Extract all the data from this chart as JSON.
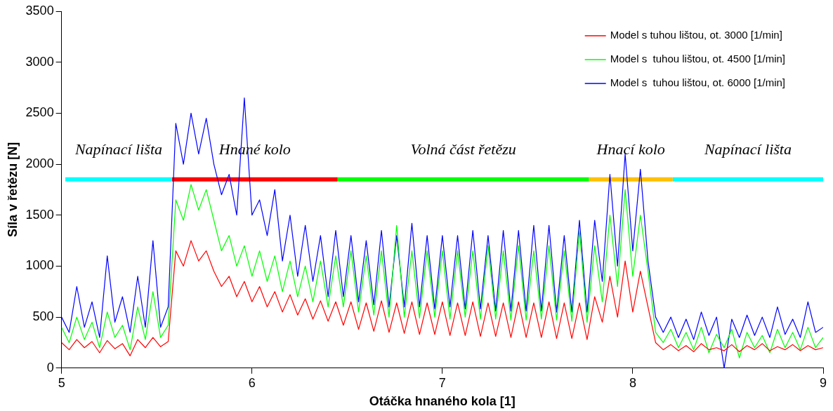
{
  "chart_data": {
    "type": "line",
    "xlabel": "Otáčka hnaného kola [1]",
    "ylabel": "Síla v řetězu [N]",
    "xlim": [
      5,
      9
    ],
    "ylim": [
      0,
      3500
    ],
    "xticks": [
      5,
      6,
      7,
      8,
      9
    ],
    "yticks": [
      0,
      500,
      1000,
      1500,
      2000,
      2500,
      3000,
      3500
    ],
    "grid": false,
    "legend": "top right",
    "marker": "none",
    "line_style": "solid",
    "x": [
      5,
      5.04,
      5.08,
      5.12,
      5.16,
      5.2,
      5.24,
      5.28,
      5.32,
      5.36,
      5.4,
      5.44,
      5.48,
      5.52,
      5.56,
      5.6,
      5.64,
      5.68,
      5.72,
      5.76,
      5.8,
      5.84,
      5.88,
      5.92,
      5.96,
      6,
      6.04,
      6.08,
      6.12,
      6.16,
      6.2,
      6.24,
      6.28,
      6.32,
      6.36,
      6.4,
      6.44,
      6.48,
      6.52,
      6.56,
      6.6,
      6.64,
      6.68,
      6.72,
      6.76,
      6.8,
      6.84,
      6.88,
      6.92,
      6.96,
      7,
      7.04,
      7.08,
      7.12,
      7.16,
      7.2,
      7.24,
      7.28,
      7.32,
      7.36,
      7.4,
      7.44,
      7.48,
      7.52,
      7.56,
      7.6,
      7.64,
      7.68,
      7.72,
      7.76,
      7.8,
      7.84,
      7.88,
      7.92,
      7.96,
      8,
      8.04,
      8.08,
      8.12,
      8.16,
      8.2,
      8.24,
      8.28,
      8.32,
      8.36,
      8.4,
      8.44,
      8.48,
      8.52,
      8.56,
      8.6,
      8.64,
      8.68,
      8.72,
      8.76,
      8.8,
      8.84,
      8.88,
      8.92,
      8.96,
      9
    ],
    "series": [
      {
        "name": "Model s tuhou lištou, ot. 3000 [1/min]",
        "color": "#ff0000",
        "values": [
          250,
          180,
          280,
          200,
          260,
          150,
          270,
          190,
          240,
          120,
          280,
          200,
          300,
          210,
          260,
          1150,
          1000,
          1250,
          1050,
          1150,
          950,
          800,
          900,
          700,
          850,
          650,
          800,
          600,
          750,
          550,
          720,
          520,
          680,
          480,
          660,
          460,
          650,
          420,
          650,
          380,
          640,
          360,
          660,
          350,
          640,
          340,
          650,
          330,
          640,
          330,
          650,
          320,
          640,
          320,
          650,
          310,
          640,
          310,
          640,
          300,
          650,
          300,
          640,
          300,
          650,
          290,
          640,
          290,
          640,
          280,
          700,
          450,
          900,
          500,
          1050,
          550,
          950,
          600,
          250,
          180,
          230,
          170,
          220,
          160,
          240,
          180,
          200,
          170,
          230,
          160,
          220,
          180,
          240,
          170,
          210,
          180,
          230,
          170,
          220,
          180,
          200
        ]
      },
      {
        "name": "Model s  tuhou lištou, ot. 4500 [1/min]",
        "color": "#00ff00",
        "values": [
          400,
          250,
          500,
          280,
          450,
          200,
          550,
          300,
          420,
          180,
          600,
          280,
          750,
          300,
          420,
          1650,
          1450,
          1800,
          1550,
          1750,
          1450,
          1150,
          1300,
          1000,
          1200,
          900,
          1150,
          850,
          1100,
          750,
          1050,
          700,
          1000,
          650,
          1050,
          600,
          1100,
          600,
          1150,
          550,
          1100,
          520,
          1150,
          500,
          1400,
          500,
          1150,
          490,
          1150,
          500,
          1150,
          480,
          1150,
          500,
          1150,
          480,
          1200,
          480,
          1150,
          470,
          1200,
          470,
          1150,
          480,
          1200,
          470,
          1150,
          460,
          1350,
          450,
          1200,
          650,
          1500,
          800,
          1750,
          900,
          1500,
          950,
          350,
          250,
          380,
          200,
          350,
          180,
          400,
          150,
          330,
          200,
          380,
          100,
          350,
          200,
          320,
          150,
          380,
          200,
          350,
          180,
          400,
          200,
          300
        ]
      },
      {
        "name": "Model s  tuhou lištou, ot. 6000 [1/min]",
        "color": "#0000ff",
        "values": [
          500,
          350,
          800,
          400,
          650,
          300,
          1100,
          450,
          700,
          350,
          900,
          400,
          1250,
          400,
          600,
          2400,
          2000,
          2500,
          2100,
          2450,
          2000,
          1700,
          1900,
          1500,
          2650,
          1500,
          1650,
          1300,
          1750,
          1050,
          1500,
          900,
          1400,
          850,
          1300,
          700,
          1350,
          700,
          1300,
          650,
          1250,
          620,
          1350,
          600,
          1300,
          600,
          1420,
          600,
          1300,
          580,
          1300,
          600,
          1300,
          580,
          1350,
          580,
          1300,
          560,
          1350,
          560,
          1350,
          560,
          1400,
          560,
          1400,
          550,
          1300,
          550,
          1450,
          550,
          1450,
          850,
          1900,
          1000,
          2100,
          1150,
          1950,
          1050,
          500,
          350,
          500,
          300,
          480,
          280,
          550,
          320,
          500,
          0,
          480,
          300,
          520,
          320,
          500,
          300,
          600,
          330,
          480,
          300,
          650,
          350,
          400
        ]
      },
      {
        "color": "#00ffff",
        "x": [
          5.02,
          5.58
        ],
        "values": [
          1850,
          1850
        ]
      },
      {
        "color": "#ff0000",
        "x": [
          5.58,
          6.45
        ],
        "values": [
          1850,
          1850
        ]
      },
      {
        "color": "#00ff00",
        "x": [
          6.45,
          7.77
        ],
        "values": [
          1850,
          1850
        ]
      },
      {
        "color": "#ffc000",
        "x": [
          7.77,
          8.21
        ],
        "values": [
          1850,
          1850
        ]
      },
      {
        "color": "#00ffff",
        "x": [
          8.21,
          9
        ],
        "values": [
          1850,
          1850
        ]
      }
    ],
    "annotations": [
      "Napínací lišta",
      "Hnané kolo",
      "Volná část řetězu",
      "Hnací kolo",
      "Napínací lišta"
    ]
  }
}
